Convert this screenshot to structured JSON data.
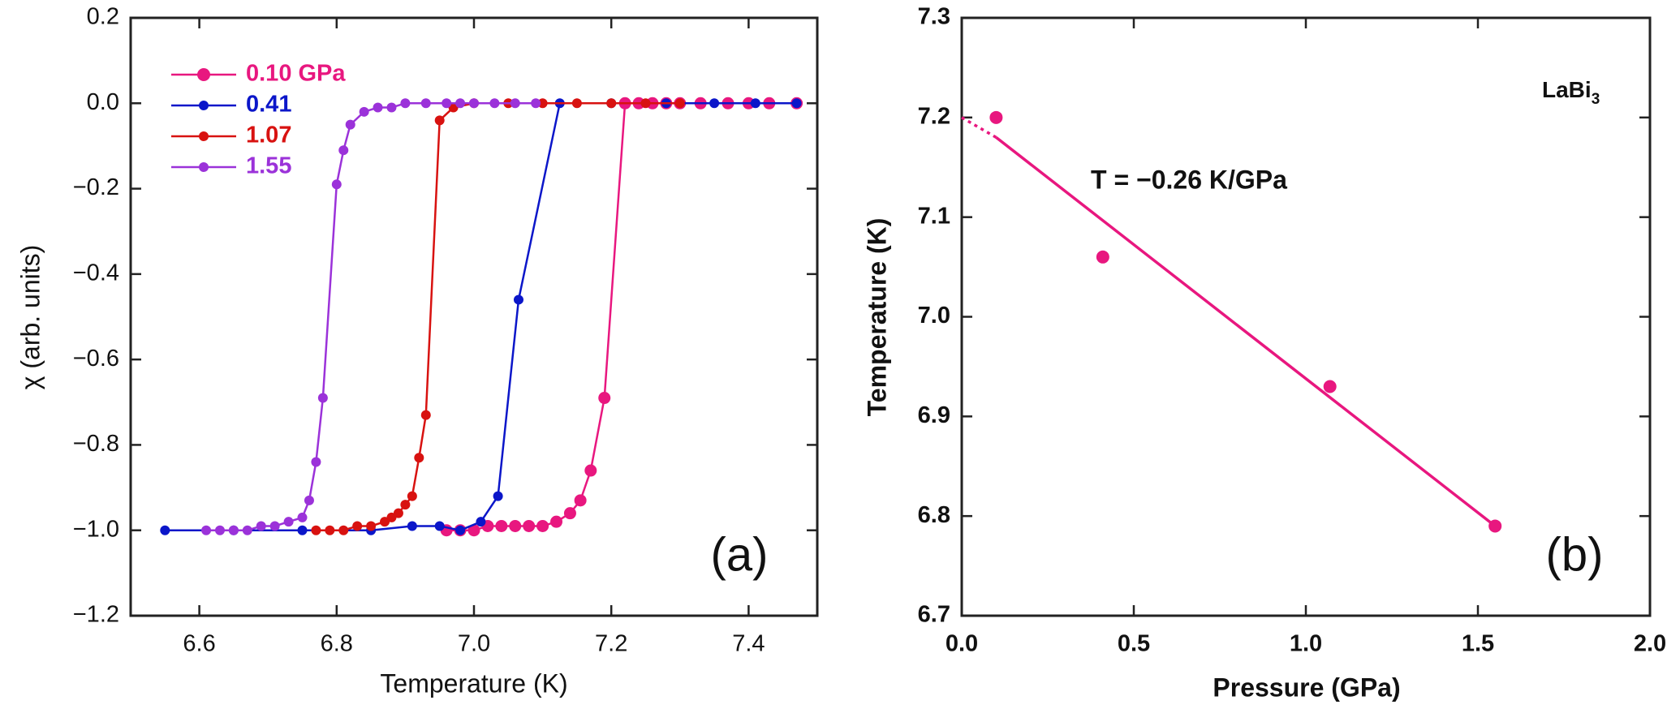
{
  "chart_data": [
    {
      "type": "line",
      "x_label": "Temperature (K)",
      "y_label": "χ (arb. units)",
      "annotation": "(a)",
      "xlim": [
        6.5,
        7.5
      ],
      "xticks": [
        6.6,
        6.8,
        {
          "value": 7,
          "label": "7.0"
        },
        7.2,
        7.4
      ],
      "ylim": [
        -1.2,
        0.2
      ],
      "yticks": [
        {
          "value": -1.2,
          "label": "−1.2"
        },
        {
          "value": -1,
          "label": "−1.0"
        },
        {
          "value": -0.8,
          "label": "−0.8"
        },
        {
          "value": -0.6,
          "label": "−0.6"
        },
        {
          "value": -0.4,
          "label": "−0.4"
        },
        {
          "value": -0.2,
          "label": "−0.2"
        },
        {
          "value": 0,
          "label": "0.0"
        },
        0.2
      ],
      "legend": "upper left",
      "series": [
        {
          "name": "0.10 GPa",
          "color": "#e8177f",
          "x": [
            6.96,
            6.98,
            7.0,
            7.02,
            7.04,
            7.06,
            7.08,
            7.1,
            7.12,
            7.14,
            7.155,
            7.17,
            7.19,
            7.22,
            7.24,
            7.26,
            7.28,
            7.3,
            7.33,
            7.37,
            7.4,
            7.43,
            7.47
          ],
          "values": [
            -1.0,
            -1.0,
            -1.0,
            -0.99,
            -0.99,
            -0.99,
            -0.99,
            -0.99,
            -0.98,
            -0.96,
            -0.93,
            -0.86,
            -0.69,
            0.0,
            0.0,
            0.0,
            0.0,
            0.0,
            0.0,
            0.0,
            0.0,
            0.0,
            0.0
          ]
        },
        {
          "name": "0.41",
          "color": "#0b16c9",
          "x": [
            6.55,
            6.65,
            6.75,
            6.85,
            6.91,
            6.95,
            6.98,
            7.01,
            7.035,
            7.065,
            7.125,
            7.2,
            7.28,
            7.35,
            7.41,
            7.47
          ],
          "values": [
            -1.0,
            -1.0,
            -1.0,
            -1.0,
            -0.99,
            -0.99,
            -1.0,
            -0.98,
            -0.92,
            -0.46,
            0.0,
            0.0,
            0.0,
            0.0,
            0.0,
            0.0
          ]
        },
        {
          "name": "1.07",
          "color": "#d81210",
          "x": [
            6.77,
            6.79,
            6.81,
            6.83,
            6.85,
            6.87,
            6.88,
            6.89,
            6.9,
            6.91,
            6.92,
            6.93,
            6.95,
            6.97,
            7.0,
            7.05,
            7.1,
            7.15,
            7.2,
            7.25,
            7.3
          ],
          "values": [
            -1.0,
            -1.0,
            -1.0,
            -0.99,
            -0.99,
            -0.98,
            -0.97,
            -0.96,
            -0.94,
            -0.92,
            -0.83,
            -0.73,
            -0.04,
            -0.01,
            0.0,
            0.0,
            0.0,
            0.0,
            0.0,
            0.0,
            0.0
          ]
        },
        {
          "name": "1.55",
          "color": "#9b32d9",
          "x": [
            6.61,
            6.63,
            6.65,
            6.67,
            6.69,
            6.71,
            6.73,
            6.75,
            6.76,
            6.77,
            6.78,
            6.8,
            6.81,
            6.82,
            6.84,
            6.86,
            6.88,
            6.9,
            6.93,
            6.96,
            6.98,
            7.0,
            7.03,
            7.06,
            7.09
          ],
          "values": [
            -1.0,
            -1.0,
            -1.0,
            -1.0,
            -0.99,
            -0.99,
            -0.98,
            -0.97,
            -0.93,
            -0.84,
            -0.69,
            -0.19,
            -0.11,
            -0.05,
            -0.02,
            -0.01,
            -0.01,
            0.0,
            0.0,
            0.0,
            0.0,
            0.0,
            0.0,
            0.0,
            0.0
          ]
        }
      ]
    },
    {
      "type": "scatter",
      "x_label": "Pressure (GPa)",
      "y_label": "Temperature (K)",
      "annotation": "(b)",
      "fit_label": "T = −0.26 K/GPa",
      "compound": {
        "text": "LaBi",
        "subscript": "3"
      },
      "xlim": [
        0,
        2
      ],
      "xticks": [
        {
          "value": 0,
          "label": "0.0"
        },
        0.5,
        {
          "value": 1,
          "label": "1.0"
        },
        1.5,
        {
          "value": 2,
          "label": "2.0"
        }
      ],
      "ylim": [
        6.7,
        7.3
      ],
      "yticks": [
        6.7,
        6.8,
        6.9,
        {
          "value": 7,
          "label": "7.0"
        },
        7.1,
        7.2,
        7.3
      ],
      "series": [
        {
          "color": "#e8177f",
          "x": [
            0.1,
            0.41,
            1.07,
            1.55
          ],
          "values": [
            7.2,
            7.06,
            6.93,
            6.79
          ]
        }
      ],
      "fit": {
        "color": "#e8177f",
        "x": [
          0.1,
          1.55
        ],
        "values": [
          7.18,
          6.79
        ]
      },
      "fit_extension": {
        "color": "#e8177f",
        "x": [
          0,
          0.1
        ],
        "values": [
          7.2,
          7.18
        ]
      }
    }
  ]
}
